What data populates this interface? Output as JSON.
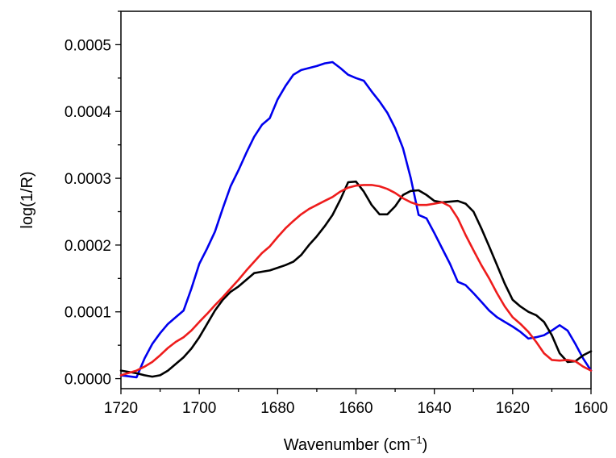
{
  "chart_data": {
    "type": "line",
    "title": "",
    "xlabel_main": "Wavenumber (cm",
    "xlabel_sup": "−1",
    "xlabel_close": ")",
    "ylabel": "log(1/R)",
    "xlim": [
      1720,
      1600
    ],
    "ylim": [
      -1.5e-05,
      0.00055
    ],
    "x_reversed": true,
    "grid": false,
    "legend": "none",
    "x_ticks": [
      1720,
      1700,
      1680,
      1660,
      1640,
      1620,
      1600
    ],
    "x_tick_labels": [
      "1720",
      "1700",
      "1680",
      "1660",
      "1640",
      "1620",
      "1600"
    ],
    "y_ticks": [
      0.0,
      0.0001,
      0.0002,
      0.0003,
      0.0004,
      0.0005
    ],
    "y_tick_labels": [
      "0.0000",
      "0.0001",
      "0.0002",
      "0.0003",
      "0.0004",
      "0.0005"
    ],
    "series": [
      {
        "color": "#0000ee",
        "x": [
          1720,
          1716,
          1714,
          1712,
          1710,
          1708,
          1706,
          1704,
          1702,
          1700,
          1698,
          1696,
          1694,
          1692,
          1690,
          1688,
          1686,
          1684,
          1682,
          1680,
          1678,
          1676,
          1674,
          1672,
          1670,
          1668,
          1666,
          1664,
          1662,
          1660,
          1658,
          1656,
          1654,
          1652,
          1650,
          1648,
          1646,
          1644,
          1642,
          1640,
          1638,
          1636,
          1634,
          1632,
          1630,
          1628,
          1626,
          1624,
          1622,
          1620,
          1618,
          1616,
          1614,
          1612,
          1610,
          1608,
          1606,
          1604,
          1602,
          1600
        ],
        "y": [
          5e-06,
          2e-06,
          3e-05,
          5.2e-05,
          6.8e-05,
          8.2e-05,
          9.2e-05,
          0.000102,
          0.000135,
          0.000172,
          0.000195,
          0.00022,
          0.000255,
          0.000288,
          0.000312,
          0.000338,
          0.000362,
          0.00038,
          0.00039,
          0.000418,
          0.000438,
          0.000455,
          0.000462,
          0.000465,
          0.000468,
          0.000472,
          0.000474,
          0.000465,
          0.000455,
          0.00045,
          0.000446,
          0.00043,
          0.000415,
          0.000398,
          0.000375,
          0.000345,
          0.0003,
          0.000245,
          0.00024,
          0.000218,
          0.000195,
          0.000172,
          0.000145,
          0.00014,
          0.000128,
          0.000115,
          0.000102,
          9.2e-05,
          8.5e-05,
          7.8e-05,
          7e-05,
          6e-05,
          6.2e-05,
          6.5e-05,
          7.2e-05,
          8e-05,
          7.2e-05,
          5.2e-05,
          3e-05,
          1.2e-05
        ]
      },
      {
        "color": "#000000",
        "x": [
          1720,
          1716,
          1714,
          1712,
          1710,
          1708,
          1706,
          1704,
          1702,
          1700,
          1698,
          1696,
          1694,
          1692,
          1690,
          1688,
          1686,
          1684,
          1682,
          1680,
          1678,
          1676,
          1674,
          1672,
          1670,
          1668,
          1666,
          1664,
          1662,
          1660,
          1658,
          1656,
          1654,
          1652,
          1650,
          1648,
          1646,
          1644,
          1642,
          1640,
          1638,
          1636,
          1634,
          1632,
          1630,
          1628,
          1626,
          1624,
          1622,
          1620,
          1618,
          1616,
          1614,
          1612,
          1610,
          1608,
          1606,
          1604,
          1602,
          1600
        ],
        "y": [
          1.2e-05,
          8e-06,
          5e-06,
          3e-06,
          5e-06,
          1.2e-05,
          2.2e-05,
          3.2e-05,
          4.5e-05,
          6.2e-05,
          8.2e-05,
          0.000102,
          0.000118,
          0.00013,
          0.000138,
          0.000148,
          0.000158,
          0.00016,
          0.000162,
          0.000166,
          0.00017,
          0.000175,
          0.000185,
          0.0002,
          0.000213,
          0.000228,
          0.000245,
          0.000268,
          0.000294,
          0.000295,
          0.00028,
          0.00026,
          0.000246,
          0.000246,
          0.000258,
          0.000275,
          0.000281,
          0.000282,
          0.000275,
          0.000266,
          0.000264,
          0.000265,
          0.000266,
          0.000262,
          0.00025,
          0.000225,
          0.000198,
          0.00017,
          0.000142,
          0.000118,
          0.000108,
          0.0001,
          9.5e-05,
          8.5e-05,
          6.5e-05,
          3.8e-05,
          2.5e-05,
          2.6e-05,
          3.5e-05,
          4.1e-05
        ]
      },
      {
        "color": "#ee1c1c",
        "x": [
          1720,
          1716,
          1714,
          1712,
          1710,
          1708,
          1706,
          1704,
          1702,
          1700,
          1698,
          1696,
          1694,
          1692,
          1690,
          1688,
          1686,
          1684,
          1682,
          1680,
          1678,
          1676,
          1674,
          1672,
          1670,
          1668,
          1666,
          1664,
          1662,
          1660,
          1658,
          1656,
          1654,
          1652,
          1650,
          1648,
          1646,
          1644,
          1642,
          1640,
          1638,
          1636,
          1634,
          1632,
          1630,
          1628,
          1626,
          1624,
          1622,
          1620,
          1618,
          1616,
          1614,
          1612,
          1610,
          1608,
          1606,
          1604,
          1602,
          1600
        ],
        "y": [
          5e-06,
          1.2e-05,
          1.8e-05,
          2.5e-05,
          3.5e-05,
          4.6e-05,
          5.5e-05,
          6.2e-05,
          7.2e-05,
          8.5e-05,
          9.7e-05,
          0.00011,
          0.000122,
          0.000135,
          0.000148,
          0.000162,
          0.000175,
          0.000188,
          0.000198,
          0.000212,
          0.000225,
          0.000236,
          0.000246,
          0.000254,
          0.00026,
          0.000266,
          0.000272,
          0.00028,
          0.000286,
          0.000289,
          0.00029,
          0.00029,
          0.000288,
          0.000284,
          0.000278,
          0.00027,
          0.000264,
          0.00026,
          0.00026,
          0.000262,
          0.000264,
          0.000258,
          0.00024,
          0.000215,
          0.000192,
          0.00017,
          0.00015,
          0.000128,
          0.000108,
          9.2e-05,
          8.2e-05,
          7e-05,
          5.5e-05,
          3.8e-05,
          2.8e-05,
          2.7e-05,
          2.8e-05,
          2.6e-05,
          1.8e-05,
          1.2e-05
        ]
      }
    ]
  }
}
